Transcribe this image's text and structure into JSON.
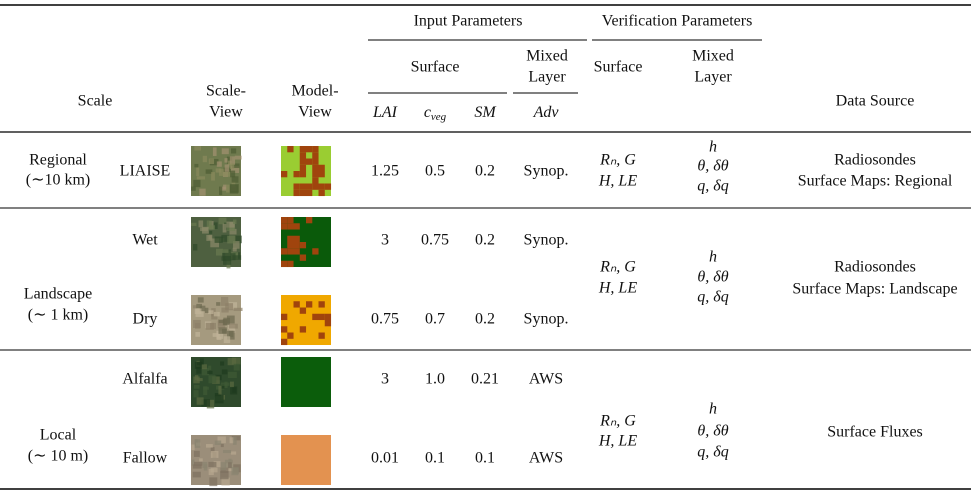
{
  "header": {
    "input_parameters": "Input Parameters",
    "verification_parameters": "Verification Parameters",
    "scale": "Scale",
    "scale_view": [
      "Scale-",
      "View"
    ],
    "model_view": [
      "Model-",
      "View"
    ],
    "surface": "Surface",
    "mixed_layer": [
      "Mixed",
      "Layer"
    ],
    "verification_surface": "Surface",
    "verification_mixed_layer": [
      "Mixed",
      "Layer"
    ],
    "data_source": "Data Source",
    "symbols": [
      {
        "base": "LAI",
        "sub": null
      },
      {
        "base": "c",
        "sub": "veg"
      },
      {
        "base": "SM",
        "sub": null
      },
      {
        "base": "Adv",
        "sub": null
      }
    ]
  },
  "groups": [
    {
      "scale": [
        "Regional",
        "(∼10 km)"
      ],
      "sites": [
        {
          "name": "LIAISE",
          "values": [
            "1.25",
            "0.5",
            "0.2",
            "Synop."
          ]
        }
      ],
      "verification_surface": [
        "Rₙ, G",
        "H, LE"
      ],
      "verification_mixed": [
        "h",
        "θ, δθ",
        "q, δq"
      ],
      "data_source": [
        "Radiosondes",
        "Surface Maps: Regional"
      ]
    },
    {
      "scale": [
        "Landscape",
        "(∼ 1 km)"
      ],
      "sites": [
        {
          "name": "Wet",
          "values": [
            "3",
            "0.75",
            "0.2",
            "Synop."
          ]
        },
        {
          "name": "Dry",
          "values": [
            "0.75",
            "0.7",
            "0.2",
            "Synop."
          ]
        }
      ],
      "verification_surface": [
        "Rₙ, G",
        "H, LE"
      ],
      "verification_mixed": [
        "h",
        "θ, δθ",
        "q, δq"
      ],
      "data_source": [
        "Radiosondes",
        "Surface Maps: Landscape"
      ]
    },
    {
      "scale": [
        "Local",
        "(∼ 10 m)"
      ],
      "sites": [
        {
          "name": "Alfalfa",
          "values": [
            "3",
            "1.0",
            "0.21",
            "AWS"
          ]
        },
        {
          "name": "Fallow",
          "values": [
            "0.01",
            "0.1",
            "0.1",
            "AWS"
          ]
        }
      ],
      "verification_surface": [
        "Rₙ, G",
        "H, LE"
      ],
      "verification_mixed": [
        "h",
        "θ, δθ",
        "q, δq"
      ],
      "data_source": [
        "Surface Fluxes"
      ]
    }
  ]
}
